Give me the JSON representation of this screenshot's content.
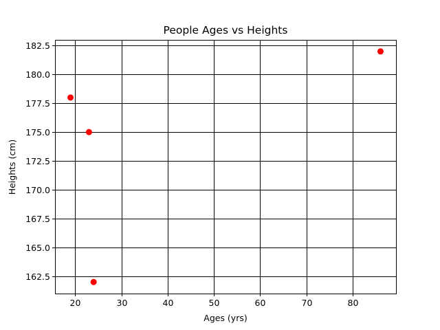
{
  "chart_data": {
    "type": "scatter",
    "title": "People Ages vs Heights",
    "xlabel": "Ages (yrs)",
    "ylabel": "Heights (cm)",
    "xlim": [
      15.65,
      89.35
    ],
    "ylim": [
      161.0,
      183.0
    ],
    "xticks": [
      20,
      30,
      40,
      50,
      60,
      70,
      80
    ],
    "yticks": [
      162.5,
      165.0,
      167.5,
      170.0,
      172.5,
      175.0,
      177.5,
      180.0,
      182.5
    ],
    "grid": true,
    "series": [
      {
        "color": "#ff0000",
        "x": [
          19,
          23,
          24,
          86
        ],
        "y": [
          178,
          175,
          162,
          182
        ]
      }
    ]
  }
}
